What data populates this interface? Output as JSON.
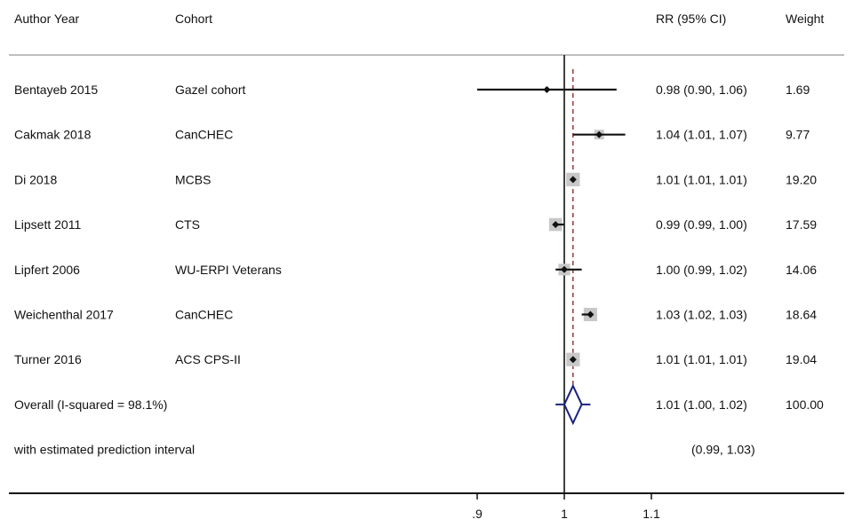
{
  "headers": {
    "author_year": "Author Year",
    "cohort": "Cohort",
    "estimate": "RR (95% CI)",
    "weight": "Weight"
  },
  "chart_data": {
    "type": "forest",
    "x_ticks": [
      {
        "value": 0.9,
        "label": ".9"
      },
      {
        "value": 1.0,
        "label": "1"
      },
      {
        "value": 1.1,
        "label": "1.1"
      }
    ],
    "null_line": 1.0,
    "overall_line": 1.01,
    "studies": [
      {
        "author_year": "Bentayeb 2015",
        "cohort": "Gazel cohort",
        "rr": 0.98,
        "lower": 0.9,
        "upper": 1.06,
        "ci_text": "0.98 (0.90, 1.06)",
        "weight": 1.69,
        "weight_text": "1.69"
      },
      {
        "author_year": "Cakmak 2018",
        "cohort": "CanCHEC",
        "rr": 1.04,
        "lower": 1.01,
        "upper": 1.07,
        "ci_text": "1.04 (1.01, 1.07)",
        "weight": 9.77,
        "weight_text": "9.77"
      },
      {
        "author_year": "Di 2018",
        "cohort": "MCBS",
        "rr": 1.01,
        "lower": 1.01,
        "upper": 1.01,
        "ci_text": "1.01 (1.01, 1.01)",
        "weight": 19.2,
        "weight_text": "19.20"
      },
      {
        "author_year": "Lipsett 2011",
        "cohort": "CTS",
        "rr": 0.99,
        "lower": 0.99,
        "upper": 1.0,
        "ci_text": "0.99 (0.99, 1.00)",
        "weight": 17.59,
        "weight_text": "17.59"
      },
      {
        "author_year": "Lipfert 2006",
        "cohort": "WU-ERPI Veterans",
        "rr": 1.0,
        "lower": 0.99,
        "upper": 1.02,
        "ci_text": "1.00 (0.99, 1.02)",
        "weight": 14.06,
        "weight_text": "14.06"
      },
      {
        "author_year": "Weichenthal 2017",
        "cohort": "CanCHEC",
        "rr": 1.03,
        "lower": 1.02,
        "upper": 1.03,
        "ci_text": "1.03 (1.02, 1.03)",
        "weight": 18.64,
        "weight_text": "18.64"
      },
      {
        "author_year": "Turner 2016",
        "cohort": "ACS CPS-II",
        "rr": 1.01,
        "lower": 1.01,
        "upper": 1.01,
        "ci_text": "1.01 (1.01, 1.01)",
        "weight": 19.04,
        "weight_text": "19.04"
      }
    ],
    "overall": {
      "label": "Overall  (I-squared = 98.1%)",
      "rr": 1.01,
      "lower": 1.0,
      "upper": 1.02,
      "ci_text": "1.01 (1.00, 1.02)",
      "weight_text": "100.00"
    },
    "prediction_interval": {
      "label": "with estimated prediction interval",
      "lower": 0.99,
      "upper": 1.03,
      "ci_text": "(0.99, 1.03)"
    },
    "colors": {
      "text": "#111111",
      "box": "#c8c8c8",
      "diamond": "#1a237e",
      "overall_line": "#8b1a1a",
      "header_rule": "#a9a9a9"
    }
  }
}
